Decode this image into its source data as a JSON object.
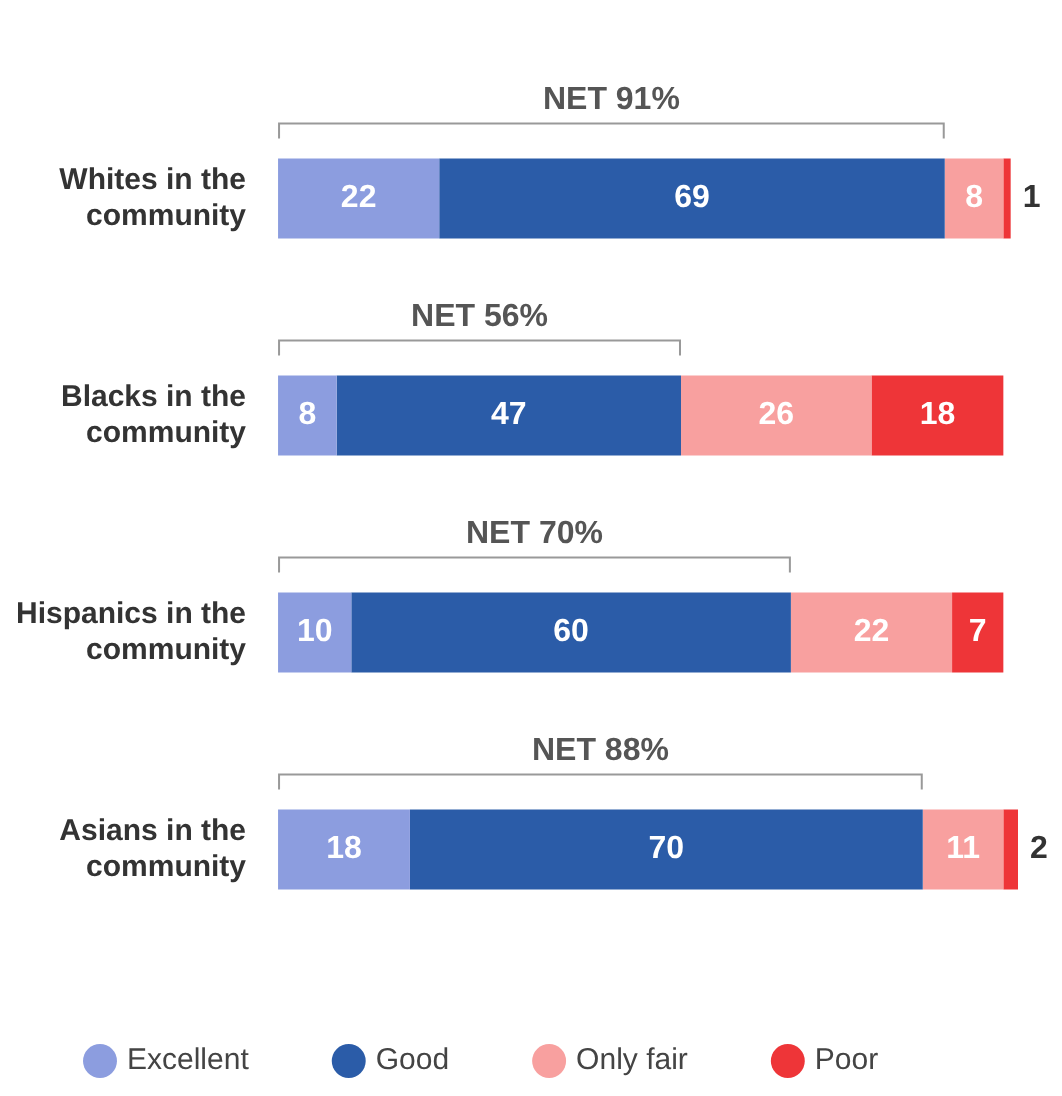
{
  "chart_data": {
    "type": "bar",
    "orientation": "horizontal",
    "data_labels": true,
    "stacked": true,
    "legend": "bottom",
    "xlim": [
      0,
      101
    ],
    "categories": [
      "Whites in the community",
      "Blacks in the community",
      "Hispanics in the community",
      "Asians in the community"
    ],
    "series": [
      {
        "name": "Excellent",
        "color": "#8c9ddf",
        "values": [
          22,
          8,
          10,
          18
        ]
      },
      {
        "name": "Good",
        "color": "#2b5ca8",
        "values": [
          69,
          47,
          60,
          70
        ]
      },
      {
        "name": "Only fair",
        "color": "#f8a09f",
        "values": [
          8,
          26,
          22,
          11
        ]
      },
      {
        "name": "Poor",
        "color": "#ee3538",
        "values": [
          1,
          18,
          7,
          2
        ]
      }
    ],
    "annotations": [
      "NET 91%",
      "NET 56%",
      "NET 70%",
      "NET 88%"
    ]
  }
}
